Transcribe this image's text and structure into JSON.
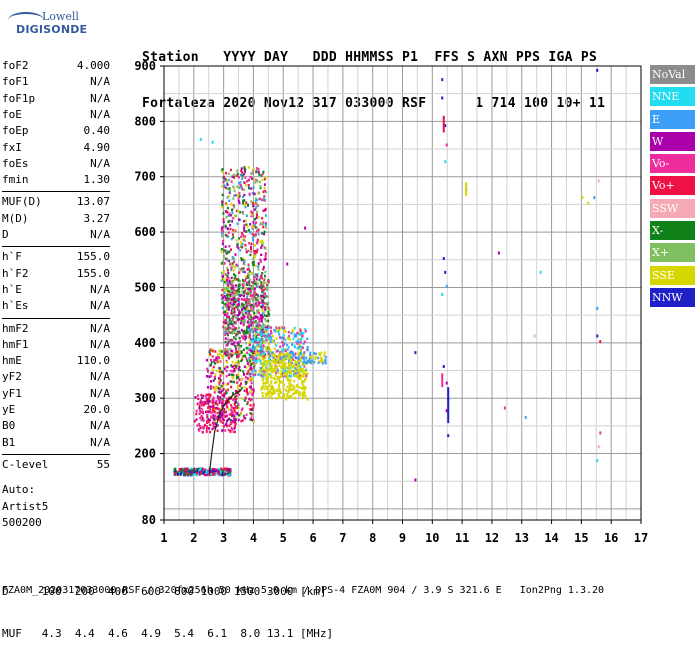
{
  "logo": {
    "line1": "Lowell",
    "line2": "DIGISONDE"
  },
  "header": {
    "line1": "Station   YYYY DAY   DDD HHMMSS P1  FFS S AXN PPS IGA PS",
    "line2": "Fortaleza 2020 Nov12 317 033000 RSF      1 714 100 10+ 11"
  },
  "params": {
    "group1": [
      {
        "label": "foF2",
        "value": "4.000"
      },
      {
        "label": "foF1",
        "value": "N/A"
      },
      {
        "label": "foF1p",
        "value": "N/A"
      },
      {
        "label": "foE",
        "value": "N/A"
      },
      {
        "label": "foEp",
        "value": "0.40"
      },
      {
        "label": "fxI",
        "value": "4.90"
      },
      {
        "label": "foEs",
        "value": "N/A"
      },
      {
        "label": "fmin",
        "value": "1.30"
      }
    ],
    "group2": [
      {
        "label": "MUF(D)",
        "value": "13.07"
      },
      {
        "label": "M(D)",
        "value": "3.27"
      },
      {
        "label": "D",
        "value": "N/A"
      }
    ],
    "group3": [
      {
        "label": "h`F",
        "value": "155.0"
      },
      {
        "label": "h`F2",
        "value": "155.0"
      },
      {
        "label": "h`E",
        "value": "N/A"
      },
      {
        "label": "h`Es",
        "value": "N/A"
      }
    ],
    "group4": [
      {
        "label": "hmF2",
        "value": "N/A"
      },
      {
        "label": "hmF1",
        "value": "N/A"
      },
      {
        "label": "hmE",
        "value": "110.0"
      },
      {
        "label": "yF2",
        "value": "N/A"
      },
      {
        "label": "yF1",
        "value": "N/A"
      },
      {
        "label": "yE",
        "value": "20.0"
      },
      {
        "label": "B0",
        "value": "N/A"
      },
      {
        "label": "B1",
        "value": "N/A"
      }
    ],
    "group5": [
      {
        "label": "C-level",
        "value": "55"
      }
    ]
  },
  "auto": {
    "line1": "Auto:",
    "line2": "Artist5",
    "line3": "500200"
  },
  "legend": [
    {
      "label": "NoVal",
      "color": "#8c8c8c"
    },
    {
      "label": "NNE",
      "color": "#22ddf0"
    },
    {
      "label": "E",
      "color": "#3c9ef5"
    },
    {
      "label": "W",
      "color": "#aa00aa"
    },
    {
      "label": "Vo-",
      "color": "#ee2c9c"
    },
    {
      "label": "Vo+",
      "color": "#ee1144"
    },
    {
      "label": "SSW",
      "color": "#f5a9b4"
    },
    {
      "label": "X-",
      "color": "#11821a"
    },
    {
      "label": "X+",
      "color": "#7fbf60"
    },
    {
      "label": "SSE",
      "color": "#d6d600"
    },
    {
      "label": "NNW",
      "color": "#2020c8"
    }
  ],
  "bottom": {
    "d_row": "D     100  200  400  600  800 1000 1500 3000 [km]",
    "muf_row": "MUF   4.3  4.4  4.6  4.9  5.4  6.1  8.0 13.1 [MHz]"
  },
  "footer": "FZA0M_2020317033000.RSF / 320fx256h 50 kHz 5.0 km / DPS-4 FZA0M 904 / 3.9 S 321.6 E   Ion2Png 1.3.20",
  "chart_data": {
    "type": "scatter",
    "xlim": [
      1,
      17
    ],
    "ylim": [
      80,
      900
    ],
    "x_ticks": [
      1,
      2,
      3,
      4,
      5,
      6,
      7,
      8,
      9,
      10,
      11,
      12,
      13,
      14,
      15,
      16,
      17
    ],
    "y_ticks": [
      80,
      200,
      300,
      400,
      500,
      600,
      700,
      800,
      900
    ],
    "grid": true,
    "seed": 7,
    "clusters": [
      {
        "x": [
          2.9,
          4.4
        ],
        "y": [
          420,
          720
        ],
        "n": 700,
        "colors": [
          "#ee2c9c",
          "#aa00aa",
          "#11821a",
          "#d6d600",
          "#3c9ef5",
          "#7fbf60",
          "#ee1144"
        ]
      },
      {
        "x": [
          3.0,
          4.5
        ],
        "y": [
          380,
          520
        ],
        "n": 500,
        "colors": [
          "#aa00aa",
          "#11821a",
          "#ee2c9c",
          "#7fbf60"
        ]
      },
      {
        "x": [
          3.8,
          5.8
        ],
        "y": [
          340,
          430
        ],
        "n": 420,
        "colors": [
          "#3c9ef5",
          "#22ddf0",
          "#d6d600",
          "#ee2c9c"
        ]
      },
      {
        "x": [
          4.2,
          5.8
        ],
        "y": [
          300,
          370
        ],
        "n": 260,
        "colors": [
          "#d6d600"
        ]
      },
      {
        "x": [
          2.4,
          4.0
        ],
        "y": [
          260,
          390
        ],
        "n": 380,
        "colors": [
          "#ee1144",
          "#ee2c9c",
          "#aa00aa",
          "#d6d600",
          "#11821a"
        ]
      },
      {
        "x": [
          2.0,
          3.4
        ],
        "y": [
          240,
          310
        ],
        "n": 200,
        "colors": [
          "#ee1144",
          "#aa00aa",
          "#ee2c9c"
        ]
      },
      {
        "x": [
          1.3,
          3.2
        ],
        "y": [
          163,
          175
        ],
        "n": 320,
        "colors": [
          "#aa00aa",
          "#ee1144",
          "#11821a",
          "#2020c8",
          "#22ddf0"
        ]
      },
      {
        "x": [
          4.6,
          6.4
        ],
        "y": [
          365,
          385
        ],
        "n": 120,
        "colors": [
          "#d6d600",
          "#3c9ef5"
        ]
      }
    ],
    "isolated": [
      {
        "x": 10.3,
        "y": 878,
        "color": "#2020c8"
      },
      {
        "x": 10.3,
        "y": 845,
        "color": "#2020c8"
      },
      {
        "x": 10.35,
        "y": 810,
        "color": "#22ddf0"
      },
      {
        "x": 10.4,
        "y": 795,
        "color": "#2020c8"
      },
      {
        "x": 10.45,
        "y": 760,
        "color": "#ee2c9c"
      },
      {
        "x": 10.4,
        "y": 730,
        "color": "#22ddf0"
      },
      {
        "x": 11.1,
        "y": 680,
        "color": "#ee1144"
      },
      {
        "x": 10.35,
        "y": 555,
        "color": "#2020c8"
      },
      {
        "x": 10.4,
        "y": 530,
        "color": "#2020c8"
      },
      {
        "x": 10.45,
        "y": 505,
        "color": "#3c9ef5"
      },
      {
        "x": 10.3,
        "y": 490,
        "color": "#22ddf0"
      },
      {
        "x": 10.35,
        "y": 360,
        "color": "#2020c8"
      },
      {
        "x": 10.45,
        "y": 330,
        "color": "#aa00aa"
      },
      {
        "x": 10.5,
        "y": 300,
        "color": "#2020c8"
      },
      {
        "x": 10.45,
        "y": 280,
        "color": "#aa00aa"
      },
      {
        "x": 10.5,
        "y": 235,
        "color": "#2020c8"
      },
      {
        "x": 9.4,
        "y": 385,
        "color": "#2020c8"
      },
      {
        "x": 9.4,
        "y": 155,
        "color": "#aa00aa"
      },
      {
        "x": 12.2,
        "y": 565,
        "color": "#aa00aa"
      },
      {
        "x": 12.4,
        "y": 285,
        "color": "#ee2c9c"
      },
      {
        "x": 13.1,
        "y": 268,
        "color": "#3c9ef5"
      },
      {
        "x": 13.4,
        "y": 415,
        "color": "#f5a9b4"
      },
      {
        "x": 13.6,
        "y": 530,
        "color": "#22ddf0"
      },
      {
        "x": 15.0,
        "y": 665,
        "color": "#d6d600"
      },
      {
        "x": 15.2,
        "y": 655,
        "color": "#d6d600"
      },
      {
        "x": 15.4,
        "y": 665,
        "color": "#3c9ef5"
      },
      {
        "x": 15.5,
        "y": 895,
        "color": "#2020c8"
      },
      {
        "x": 15.55,
        "y": 695,
        "color": "#f5a9b4"
      },
      {
        "x": 15.5,
        "y": 465,
        "color": "#3c9ef5"
      },
      {
        "x": 15.5,
        "y": 415,
        "color": "#2020c8"
      },
      {
        "x": 15.6,
        "y": 405,
        "color": "#ee1144"
      },
      {
        "x": 15.6,
        "y": 240,
        "color": "#ee2c9c"
      },
      {
        "x": 15.55,
        "y": 215,
        "color": "#f5a9b4"
      },
      {
        "x": 15.5,
        "y": 190,
        "color": "#22ddf0"
      },
      {
        "x": 5.7,
        "y": 610,
        "color": "#aa00aa"
      },
      {
        "x": 5.1,
        "y": 545,
        "color": "#aa00aa"
      },
      {
        "x": 2.2,
        "y": 770,
        "color": "#22ddf0"
      },
      {
        "x": 2.6,
        "y": 765,
        "color": "#22ddf0"
      }
    ],
    "vertical_streaks": [
      {
        "x": 10.5,
        "y1": 255,
        "y2": 320,
        "color": "#2020c8"
      },
      {
        "x": 10.3,
        "y1": 320,
        "y2": 345,
        "color": "#ee2c9c"
      },
      {
        "x": 10.35,
        "y1": 780,
        "y2": 810,
        "color": "#ee1144"
      },
      {
        "x": 11.1,
        "y1": 665,
        "y2": 690,
        "color": "#d6d600"
      }
    ],
    "profile_curve": [
      {
        "x": 2.52,
        "y": 163
      },
      {
        "x": 2.6,
        "y": 200
      },
      {
        "x": 2.7,
        "y": 240
      },
      {
        "x": 2.85,
        "y": 270
      },
      {
        "x": 3.05,
        "y": 290
      },
      {
        "x": 3.3,
        "y": 305
      },
      {
        "x": 3.6,
        "y": 315
      }
    ]
  }
}
